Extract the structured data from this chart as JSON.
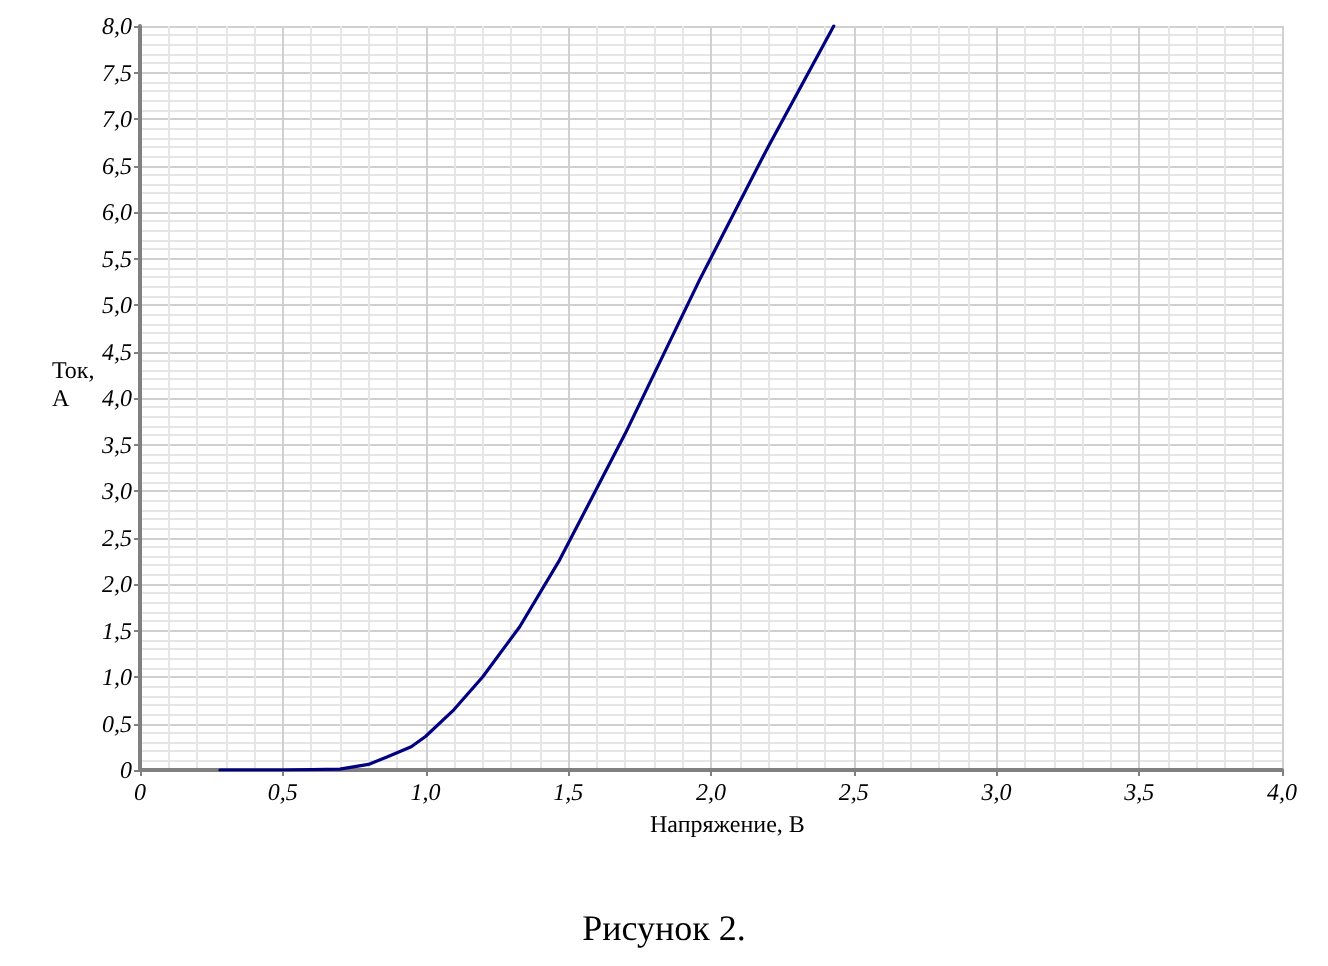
{
  "chart_data": {
    "type": "line",
    "xlabel": "Напряжение, В",
    "ylabel": "Ток,\nА",
    "annotations": [
      "Рисунок 2."
    ],
    "x": [
      0.28,
      0.5,
      0.7,
      0.8,
      0.865,
      0.95,
      1.0,
      1.1,
      1.2,
      1.33,
      1.47,
      1.7,
      1.96,
      2.2,
      2.43
    ],
    "series": [
      {
        "color": "#000080",
        "values": [
          0,
          0,
          0.01,
          0.06,
          0.14,
          0.25,
          0.36,
          0.65,
          1.0,
          1.54,
          2.26,
          3.62,
          5.27,
          6.7,
          8.0
        ]
      }
    ],
    "xlim": [
      0,
      4
    ],
    "xticks": [
      0,
      {
        "value": 0.5,
        "label": "0,5"
      },
      {
        "value": 1,
        "label": "1,0"
      },
      {
        "value": 1.5,
        "label": "1,5"
      },
      {
        "value": 2,
        "label": "2,0"
      },
      {
        "value": 2.5,
        "label": "2,5"
      },
      {
        "value": 3,
        "label": "3,0"
      },
      {
        "value": 3.5,
        "label": "3,5"
      },
      {
        "value": 4,
        "label": "4,0"
      }
    ],
    "ylim": [
      0,
      8
    ],
    "yticks": [
      0,
      {
        "value": 0.5,
        "label": "0,5"
      },
      {
        "value": 1,
        "label": "1,0"
      },
      {
        "value": 1.5,
        "label": "1,5"
      },
      {
        "value": 2,
        "label": "2,0"
      },
      {
        "value": 2.5,
        "label": "2,5"
      },
      {
        "value": 3,
        "label": "3,0"
      },
      {
        "value": 3.5,
        "label": "3,5"
      },
      {
        "value": 4,
        "label": "4,0"
      },
      {
        "value": 4.5,
        "label": "4,5"
      },
      {
        "value": 5,
        "label": "5,0"
      },
      {
        "value": 5.5,
        "label": "5,5"
      },
      {
        "value": 6,
        "label": "6,0"
      },
      {
        "value": 6.5,
        "label": "6,5"
      },
      {
        "value": 7,
        "label": "7,0"
      },
      {
        "value": 7.5,
        "label": "7,5"
      },
      {
        "value": 8,
        "label": "8,0"
      }
    ],
    "grid": true,
    "marker": "none",
    "line_style": "solid"
  }
}
